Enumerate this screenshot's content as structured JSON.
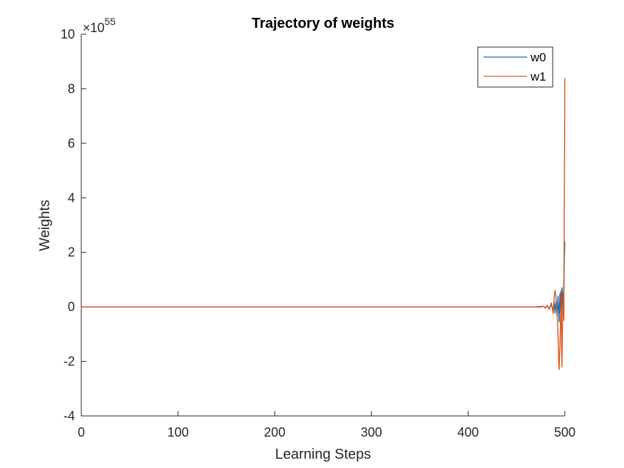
{
  "chart_data": {
    "type": "line",
    "title": "Trajectory of weights",
    "xlabel": "Learning Steps",
    "ylabel": "Weights",
    "y_exponent_label": "×10",
    "y_exponent_power": "55",
    "xlim": [
      0,
      500
    ],
    "ylim": [
      -4,
      10
    ],
    "x_ticks": [
      "0",
      "100",
      "200",
      "300",
      "400",
      "500"
    ],
    "y_ticks": [
      "-4",
      "-2",
      "0",
      "2",
      "4",
      "6",
      "8",
      "10"
    ],
    "x_tick_values": [
      0,
      100,
      200,
      300,
      400,
      500
    ],
    "y_tick_values": [
      -4,
      -2,
      0,
      2,
      4,
      6,
      8,
      10
    ],
    "grid": false,
    "legend_position": "top-right",
    "series": [
      {
        "name": "w0",
        "color": "#0072BD",
        "x": [
          0,
          470,
          475,
          478,
          480,
          482,
          484,
          486,
          488,
          489,
          490,
          491,
          492,
          493,
          494,
          495,
          496,
          497,
          498,
          499,
          500
        ],
        "y": [
          0,
          0,
          0.01,
          0.02,
          -0.03,
          0.04,
          -0.06,
          0.08,
          -0.12,
          0.18,
          -0.22,
          0.25,
          -0.35,
          0.4,
          -0.55,
          0.5,
          -0.65,
          0.7,
          -0.3,
          1.0,
          2.4
        ]
      },
      {
        "name": "w1",
        "color": "#D95319",
        "x": [
          0,
          470,
          475,
          478,
          480,
          482,
          484,
          486,
          488,
          489,
          490,
          491,
          492,
          493,
          494,
          495,
          496,
          497,
          498,
          499,
          500
        ],
        "y": [
          0,
          0,
          -0.01,
          0.03,
          -0.05,
          0.06,
          -0.1,
          0.15,
          -0.25,
          0.35,
          0.6,
          0.3,
          -0.3,
          -1.0,
          -2.3,
          -1.5,
          0.6,
          -2.2,
          0.5,
          -0.5,
          8.4
        ]
      }
    ]
  }
}
